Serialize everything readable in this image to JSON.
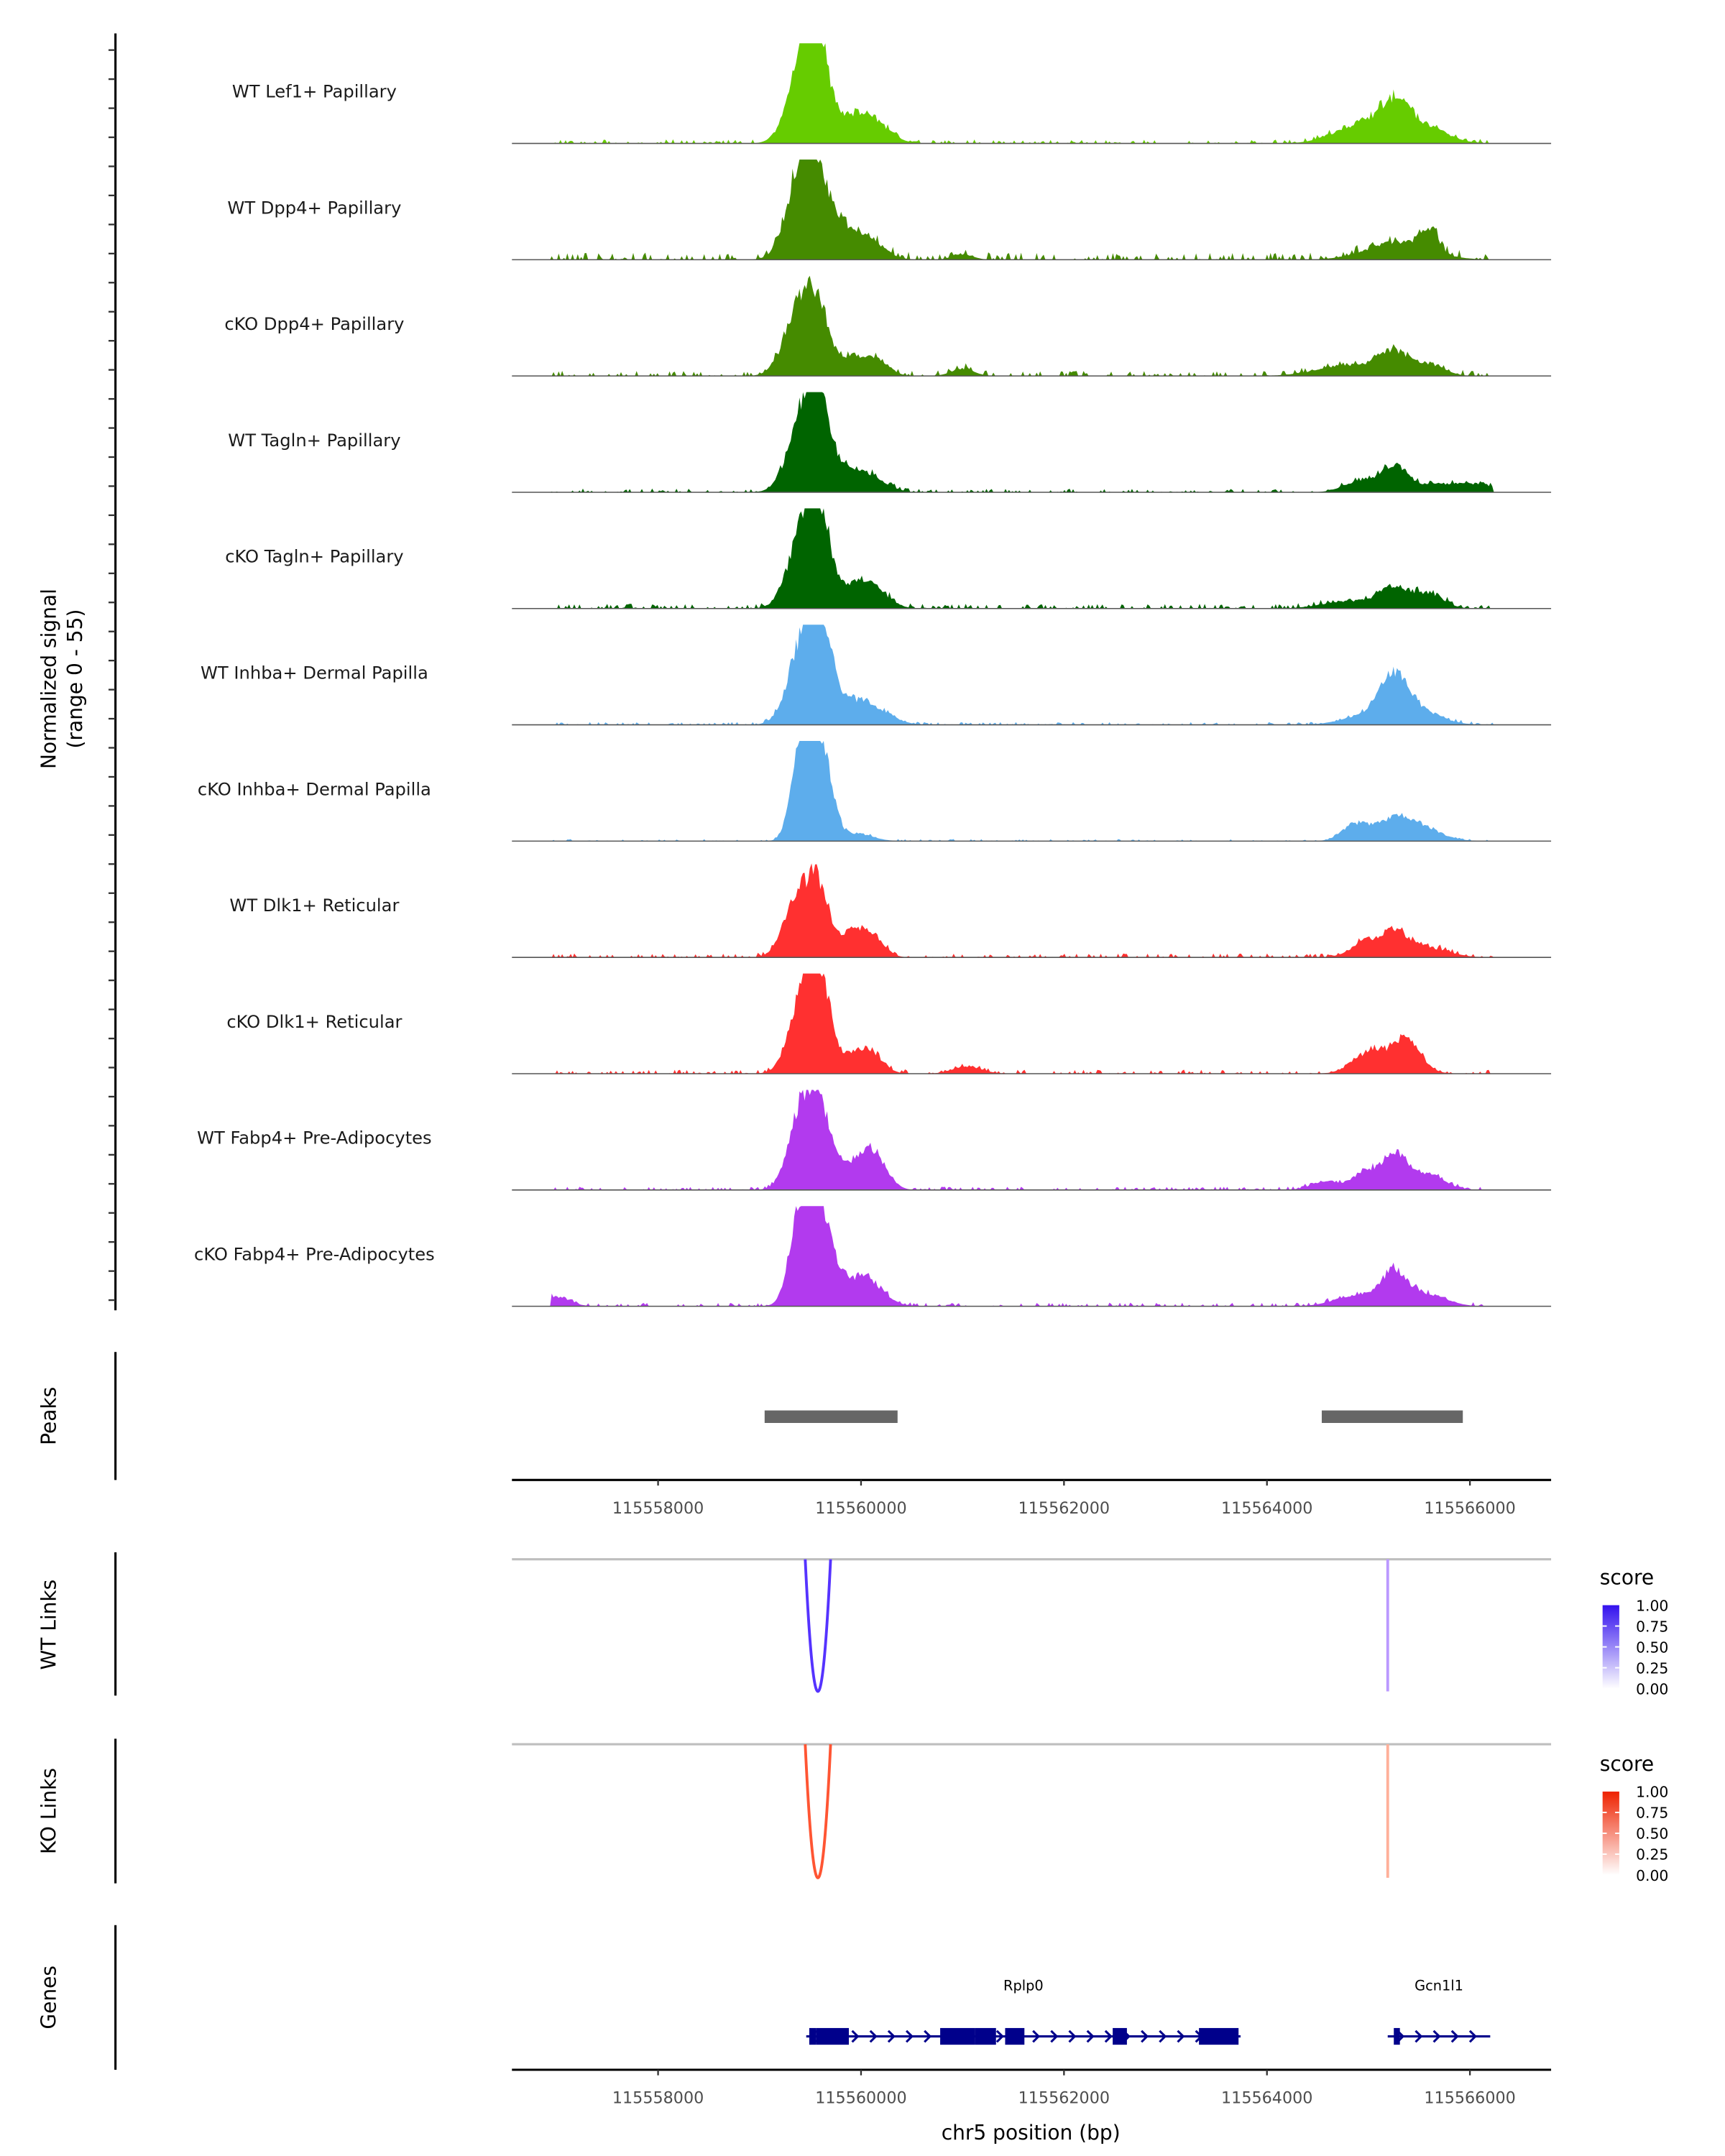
{
  "chart_data": {
    "type": "area",
    "title": "",
    "chromosome": "chr5",
    "xlabel": "chr5 position (bp)",
    "ylabel": "Normalized signal",
    "ylabel_sub": "(range 0 - 55)",
    "xlim": [
      115556560,
      115566800
    ],
    "ylim": [
      0,
      55
    ],
    "x_ticks": [
      115558000,
      115560000,
      115562000,
      115564000,
      115566000
    ],
    "x_tick_labels": [
      "115558000",
      "115560000",
      "115562000",
      "115564000",
      "115566000"
    ],
    "coverage_tracks": [
      {
        "name": "WT Lef1+ Papillary",
        "color": "#66CC00",
        "peaks": [
          [
            115559450,
            48,
            150
          ],
          [
            115559560,
            38,
            110
          ],
          [
            115559950,
            14,
            180
          ],
          [
            115560150,
            6,
            160
          ],
          [
            115565150,
            8,
            250
          ],
          [
            115565250,
            14,
            140
          ],
          [
            115565550,
            8,
            220
          ],
          [
            115564800,
            6,
            220
          ]
        ],
        "noise": 1.0
      },
      {
        "name": "WT Dpp4+ Papillary",
        "color": "#458B00",
        "peaks": [
          [
            115559400,
            42,
            140
          ],
          [
            115559560,
            36,
            120
          ],
          [
            115559800,
            14,
            120
          ],
          [
            115560050,
            12,
            160
          ],
          [
            115565300,
            10,
            300
          ],
          [
            115565600,
            12,
            80
          ],
          [
            115561000,
            3,
            100
          ]
        ],
        "noise": 1.8
      },
      {
        "name": "cKO Dpp4+ Papillary",
        "color": "#458B00",
        "peaks": [
          [
            115559400,
            36,
            150
          ],
          [
            115559580,
            26,
            120
          ],
          [
            115559900,
            9,
            120
          ],
          [
            115560150,
            9,
            120
          ],
          [
            115565250,
            12,
            150
          ],
          [
            115564800,
            6,
            300
          ],
          [
            115565600,
            6,
            150
          ],
          [
            115561000,
            4,
            110
          ]
        ],
        "noise": 1.3
      },
      {
        "name": "WT Tagln+ Papillary",
        "color": "#006400",
        "peaks": [
          [
            115559450,
            46,
            150
          ],
          [
            115559600,
            30,
            110
          ],
          [
            115559900,
            12,
            140
          ],
          [
            115560150,
            6,
            140
          ],
          [
            115565250,
            14,
            140
          ],
          [
            115564900,
            6,
            150
          ],
          [
            115565700,
            4,
            200
          ],
          [
            115566100,
            4,
            200
          ]
        ],
        "noise": 0.9
      },
      {
        "name": "cKO Tagln+ Papillary",
        "color": "#006400",
        "peaks": [
          [
            115559450,
            46,
            150
          ],
          [
            115559600,
            32,
            110
          ],
          [
            115559950,
            12,
            140
          ],
          [
            115560150,
            8,
            140
          ],
          [
            115565250,
            11,
            150
          ],
          [
            115564800,
            4,
            250
          ],
          [
            115565600,
            8,
            140
          ]
        ],
        "noise": 1.2
      },
      {
        "name": "WT Inhba+ Dermal Papilla",
        "color": "#5DADEC",
        "peaks": [
          [
            115559450,
            48,
            150
          ],
          [
            115559620,
            36,
            110
          ],
          [
            115559950,
            12,
            160
          ],
          [
            115560200,
            5,
            160
          ],
          [
            115565250,
            26,
            150
          ],
          [
            115565550,
            6,
            200
          ],
          [
            115564900,
            4,
            200
          ]
        ],
        "noise": 0.7
      },
      {
        "name": "cKO Inhba+ Dermal Papilla",
        "color": "#5DADEC",
        "peaks": [
          [
            115559380,
            28,
            80
          ],
          [
            115559500,
            50,
            120
          ],
          [
            115559650,
            26,
            90
          ],
          [
            115559950,
            4,
            160
          ],
          [
            115564850,
            8,
            120
          ],
          [
            115565250,
            12,
            200
          ],
          [
            115565550,
            5,
            200
          ]
        ],
        "noise": 0.5
      },
      {
        "name": "WT Dlk1+ Reticular",
        "color": "#FF3030",
        "peaks": [
          [
            115559400,
            36,
            140
          ],
          [
            115559600,
            28,
            100
          ],
          [
            115559900,
            12,
            120
          ],
          [
            115560100,
            11,
            120
          ],
          [
            115564950,
            7,
            140
          ],
          [
            115565250,
            13,
            150
          ],
          [
            115565600,
            5,
            200
          ]
        ],
        "noise": 1.0
      },
      {
        "name": "cKO Dlk1+ Reticular",
        "color": "#FF3030",
        "peaks": [
          [
            115559450,
            48,
            140
          ],
          [
            115559620,
            32,
            100
          ],
          [
            115559950,
            9,
            150
          ],
          [
            115560100,
            8,
            120
          ],
          [
            115561050,
            4,
            140
          ],
          [
            115565200,
            10,
            220
          ],
          [
            115565400,
            12,
            120
          ],
          [
            115564950,
            6,
            140
          ]
        ],
        "noise": 1.0
      },
      {
        "name": "WT Fabp4+ Pre-Adipocytes",
        "color": "#B23AEE",
        "peaks": [
          [
            115559420,
            42,
            130
          ],
          [
            115559600,
            34,
            120
          ],
          [
            115559950,
            14,
            160
          ],
          [
            115560150,
            14,
            120
          ],
          [
            115565250,
            20,
            140
          ],
          [
            115565600,
            8,
            160
          ],
          [
            115564950,
            9,
            100
          ],
          [
            115564600,
            5,
            150
          ]
        ],
        "noise": 0.8
      },
      {
        "name": "cKO Fabp4+ Pre-Adipocytes",
        "color": "#B23AEE",
        "peaks": [
          [
            115559380,
            28,
            100
          ],
          [
            115559500,
            48,
            120
          ],
          [
            115559650,
            28,
            100
          ],
          [
            115559950,
            14,
            160
          ],
          [
            115560150,
            6,
            140
          ],
          [
            115565250,
            17,
            120
          ],
          [
            115565550,
            7,
            200
          ],
          [
            115564900,
            6,
            220
          ],
          [
            115557000,
            5,
            130
          ]
        ],
        "noise": 0.9
      }
    ],
    "peaks_track": {
      "name": "Peaks",
      "color": "#666666",
      "regions": [
        [
          115559050,
          115560360
        ],
        [
          115564540,
          115565930
        ]
      ]
    },
    "link_tracks": [
      {
        "name": "WT Links",
        "legend_title": "score",
        "low_color": "#FFFFFF",
        "high_color": "#3311EE",
        "links": [
          {
            "start": 115559450,
            "end": 115559700,
            "score": 0.82,
            "color": "#5533FF"
          },
          {
            "start": 115565190,
            "end": 115565195,
            "score": 0.45,
            "color": "#BB99FF"
          }
        ]
      },
      {
        "name": "KO Links",
        "legend_title": "score",
        "low_color": "#FFFFFF",
        "high_color": "#EE2200",
        "links": [
          {
            "start": 115559450,
            "end": 115559700,
            "score": 0.8,
            "color": "#FF5533"
          },
          {
            "start": 115565190,
            "end": 115565195,
            "score": 0.4,
            "color": "#FFB09A"
          }
        ]
      }
    ],
    "legend_ticks": [
      "1.00",
      "0.75",
      "0.50",
      "0.25",
      "0.00"
    ],
    "genes_track": {
      "name": "Genes",
      "color": "#00008B",
      "genes": [
        {
          "name": "Rplp0",
          "start": 115559460,
          "end": 115563740,
          "strand": "+",
          "exons": [
            [
              115559490,
              115559560
            ],
            [
              115559560,
              115559880
            ],
            [
              115560780,
              115561120
            ],
            [
              115561120,
              115561330
            ],
            [
              115561420,
              115561610
            ],
            [
              115562480,
              115562620
            ],
            [
              115563330,
              115563720
            ]
          ]
        },
        {
          "name": "Gcn1l1",
          "start": 115565190,
          "end": 115566200,
          "strand": "+",
          "exons": [
            [
              115565250,
              115565310
            ]
          ]
        }
      ]
    }
  }
}
